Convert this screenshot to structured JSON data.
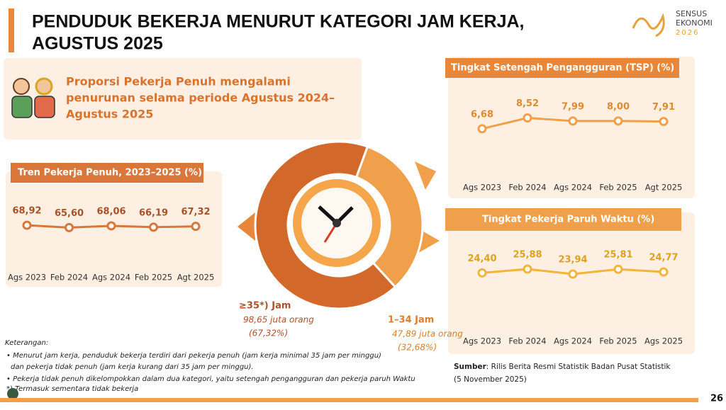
{
  "header": {
    "title_lines": [
      "PENDUDUK BEKERJA MENURUT KATEGORI JAM KERJA,",
      "AGUSTUS 2025"
    ],
    "logo": [
      "SENSUS",
      "EKONOMI",
      "2026"
    ]
  },
  "highlight": {
    "lines": [
      "Proporsi Pekerja Penuh mengalami",
      "penurunan selama periode Agustus 2024–",
      "Agustus 2025"
    ]
  },
  "chart_data": [
    {
      "type": "line",
      "title": "Tren Pekerja Penuh, 2023–2025 (%)",
      "categories": [
        "Ags 2023",
        "Feb 2024",
        "Ags 2024",
        "Feb 2025",
        "Agt 2025"
      ],
      "values": [
        68.92,
        65.6,
        68.06,
        66.19,
        67.32
      ],
      "value_labels": [
        "68,92",
        "65,60",
        "68,06",
        "66,19",
        "67,32"
      ],
      "color": "#d9773a",
      "ylim": [
        47,
        87
      ]
    },
    {
      "type": "line",
      "title": "Tingkat Setengah Pengangguran (TSP) (%)",
      "categories": [
        "Ags 2023",
        "Feb 2024",
        "Ags 2024",
        "Feb 2025",
        "Agt 2025"
      ],
      "values": [
        6.68,
        8.52,
        7.99,
        8.0,
        7.91
      ],
      "value_labels": [
        "6,68",
        "8,52",
        "7,99",
        "8,00",
        "7,91"
      ],
      "color": "#f0a04b",
      "ylim": [
        4.5,
        10.5
      ]
    },
    {
      "type": "line",
      "title": "Tingkat Pekerja Paruh Waktu (%)",
      "categories": [
        "Ags 2023",
        "Feb 2024",
        "Ags 2024",
        "Feb 2025",
        "Ags 2025"
      ],
      "values": [
        24.4,
        25.88,
        23.94,
        25.81,
        24.77
      ],
      "value_labels": [
        "24,40",
        "25,88",
        "23,94",
        "25,81",
        "24,77"
      ],
      "color": "#f2b43a",
      "ylim": [
        19,
        30
      ]
    },
    {
      "type": "pie",
      "categories": [
        "≥35*) Jam",
        "1–34 Jam"
      ],
      "values": [
        67.32,
        32.68
      ],
      "value_labels": [
        "(67,32%)",
        "(32,68%)"
      ],
      "count_labels": [
        "98,65 juta orang",
        "47,89 juta orang"
      ],
      "colors": [
        "#d2692a",
        "#f0a04b"
      ]
    }
  ],
  "notes": {
    "heading": "Keterangan:",
    "lines": [
      "• Menurut jam kerja, penduduk bekerja terdiri dari pekerja penuh (jam kerja minimal 35 jam per minggu)",
      "dan pekerja tidak penuh (jam kerja kurang dari 35 jam per minggu).",
      "• Pekerja tidak penuh dikelompokkan dalam dua kategori, yaitu setengah pengangguran dan pekerja paruh Waktu",
      "*) Termasuk sementara tidak bekerja"
    ]
  },
  "source": {
    "label": "Sumber",
    "text": ": Rilis Berita Resmi Statistik Badan Pusat Statistik",
    "date": "(5 November 2025)"
  },
  "page_number": "26"
}
